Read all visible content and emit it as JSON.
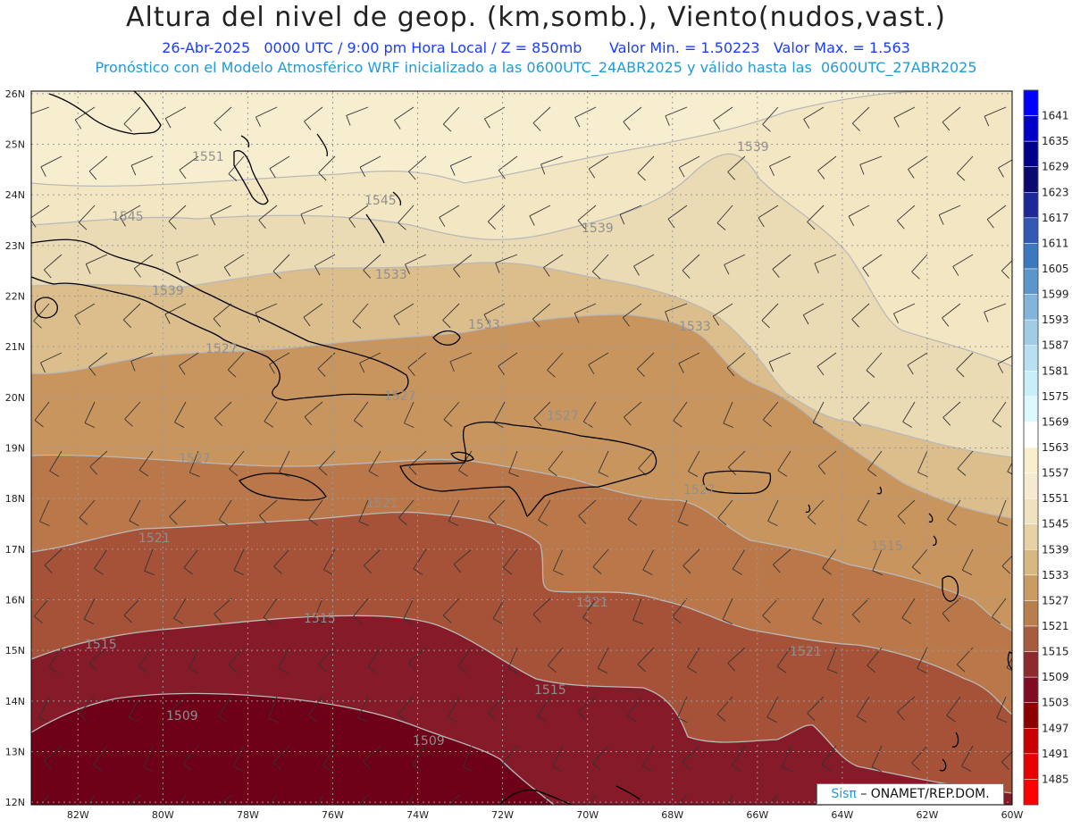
{
  "header": {
    "title": "Altura del nivel de geop. (km,somb.), Viento(nudos,vast.)",
    "line1_left": "26-Abr-2025   0000 UTC / 9:00 pm Hora Local / Z = 850mb",
    "line1_right": "Valor Min. = 1.50223   Valor Max. = 1.563",
    "line2": "Pronóstico con el Modelo Atmosférico WRF inicializado a las 0600UTC_24ABR2025 y válido hasta las  0600UTC_27ABR2025"
  },
  "map": {
    "lat_labels": [
      "26N",
      "25N",
      "24N",
      "23N",
      "22N",
      "21N",
      "20N",
      "19N",
      "18N",
      "17N",
      "16N",
      "15N",
      "14N",
      "13N",
      "12N"
    ],
    "lon_labels": [
      "82W",
      "80W",
      "78W",
      "76W",
      "74W",
      "72W",
      "70W",
      "68W",
      "66W",
      "64W",
      "62W",
      "60W"
    ],
    "contour_labels": [
      {
        "text": "1551"
      },
      {
        "text": "1545"
      },
      {
        "text": "1545"
      },
      {
        "text": "1539"
      },
      {
        "text": "1539"
      },
      {
        "text": "1539"
      },
      {
        "text": "1533"
      },
      {
        "text": "1533"
      },
      {
        "text": "1533"
      },
      {
        "text": "1527"
      },
      {
        "text": "1527"
      },
      {
        "text": "1527"
      },
      {
        "text": "1527"
      },
      {
        "text": "1527"
      },
      {
        "text": "1521"
      },
      {
        "text": "1521"
      },
      {
        "text": "1521"
      },
      {
        "text": "1521"
      },
      {
        "text": "1515"
      },
      {
        "text": "1515"
      },
      {
        "text": "1515"
      },
      {
        "text": "1515"
      },
      {
        "text": "1509"
      },
      {
        "text": "1509"
      }
    ],
    "contour_levels": [
      1509,
      1515,
      1521,
      1527,
      1533,
      1539,
      1545,
      1551,
      1557
    ]
  },
  "colorbar": {
    "levels": [
      "1641",
      "1635",
      "1629",
      "1623",
      "1617",
      "1611",
      "1605",
      "1599",
      "1593",
      "1587",
      "1581",
      "1575",
      "1569",
      "1563",
      "1557",
      "1551",
      "1545",
      "1539",
      "1533",
      "1527",
      "1521",
      "1515",
      "1509",
      "1503",
      "1497",
      "1491",
      "1485"
    ],
    "colors": [
      "#0000ff",
      "#0000c8",
      "#00008c",
      "#0a0a6e",
      "#1e2896",
      "#3258b4",
      "#3c78be",
      "#5a96cc",
      "#82b4dc",
      "#a0cce6",
      "#b8e0f0",
      "#c8eef8",
      "#dcf8fc",
      "#ffffff",
      "#f8f0cc",
      "#f5ebd2",
      "#efe2c0",
      "#e6d2a5",
      "#d8b882",
      "#c89c64",
      "#b97e4e",
      "#a85c3e",
      "#8c2a2e",
      "#800c24",
      "#8c0000",
      "#c80000",
      "#e60000",
      "#ff0000"
    ],
    "fill_colors": {
      "1503": "#6e0018",
      "1509": "#851a28",
      "1515": "#a65238",
      "1521": "#b9774a",
      "1527": "#c9955f",
      "1533": "#dcbd8c",
      "1539": "#ebdbb4",
      "1545": "#f3e6c3",
      "1551": "#f7eed0",
      "1557": "#f9f2d8"
    }
  },
  "credit": {
    "logo": "Sisπ",
    "text": "– ONAMET/REP.DOM."
  }
}
